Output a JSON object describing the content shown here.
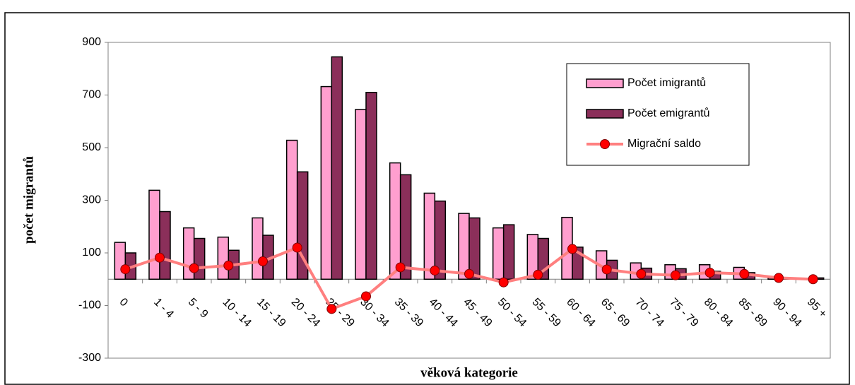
{
  "chart_data": {
    "type": "bar_line",
    "xlabel": "věková kategorie",
    "ylabel": "počet migrantů",
    "categories": [
      "0",
      "1 - 4",
      "5 - 9",
      "10 - 14",
      "15 - 19",
      "20 - 24",
      "25 - 29",
      "30 - 34",
      "35 - 39",
      "40 - 44",
      "45 - 49",
      "50 - 54",
      "55 - 59",
      "60 - 64",
      "65 - 69",
      "70 - 74",
      "75 - 79",
      "80 - 84",
      "85 - 89",
      "90 - 94",
      "95 +"
    ],
    "series": [
      {
        "name": "Počet imigrantů",
        "color": "#ff9fcf",
        "type": "bar",
        "values": [
          140,
          338,
          195,
          160,
          233,
          528,
          732,
          645,
          442,
          327,
          250,
          195,
          170,
          235,
          108,
          62,
          55,
          55,
          45,
          5,
          2
        ]
      },
      {
        "name": "Počet emigrantů",
        "color": "#8b2f5a",
        "type": "bar",
        "values": [
          100,
          257,
          155,
          110,
          167,
          408,
          845,
          710,
          397,
          297,
          233,
          207,
          155,
          122,
          72,
          42,
          40,
          30,
          25,
          5,
          5
        ]
      },
      {
        "name": "Migrační saldo",
        "color": "#ff7f7f",
        "marker_color": "#ff0000",
        "type": "line",
        "values": [
          38,
          82,
          42,
          52,
          68,
          120,
          -113,
          -65,
          45,
          33,
          20,
          -12,
          17,
          115,
          37,
          20,
          15,
          25,
          20,
          5,
          0
        ]
      }
    ],
    "ylim": [
      -300,
      900
    ],
    "yticks": [
      -300,
      -100,
      100,
      300,
      500,
      700,
      900
    ],
    "legend": "upper right"
  }
}
